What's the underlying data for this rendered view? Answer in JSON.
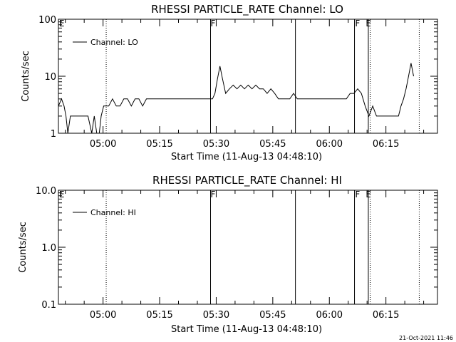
{
  "chart_data": [
    {
      "type": "line",
      "title": "RHESSI PARTICLE_RATE Channel: LO",
      "xlabel": "Start Time (11-Aug-13 04:48:10)",
      "ylabel": "Counts/sec",
      "yscale": "log",
      "ylim": [
        1,
        100
      ],
      "yticks": [
        1,
        10,
        100
      ],
      "ytick_labels": [
        "1",
        "10",
        "100"
      ],
      "xlim": [
        "04:48:10",
        "06:28:40"
      ],
      "xticks": [
        "05:00",
        "05:15",
        "05:30",
        "05:45",
        "06:00",
        "06:15"
      ],
      "legend": "upper-left",
      "series": [
        {
          "name": "Channel: LO",
          "x": [
            "04:48:10",
            "04:49:00",
            "04:49:40",
            "04:50:10",
            "04:50:40",
            "04:51:20",
            "04:52:00",
            "04:52:40",
            "04:53:20",
            "04:54:00",
            "04:55:00",
            "04:56:00",
            "04:57:00",
            "04:57:40",
            "04:58:20",
            "04:59:00",
            "04:59:30",
            "05:00:10",
            "05:00:50",
            "05:01:30",
            "05:02:30",
            "05:03:30",
            "05:04:30",
            "05:05:30",
            "05:06:30",
            "05:07:30",
            "05:08:30",
            "05:09:30",
            "05:10:30",
            "05:11:30",
            "05:12:30",
            "05:13:30",
            "05:14:30",
            "05:15:30",
            "05:16:30",
            "05:17:30",
            "05:18:30",
            "05:19:30",
            "05:20:30",
            "05:21:30",
            "05:22:30",
            "05:23:30",
            "05:24:30",
            "05:25:30",
            "05:26:30",
            "05:27:30",
            "05:28:20",
            "05:29:00",
            "05:29:40",
            "05:30:20",
            "05:31:00",
            "05:31:40",
            "05:32:30",
            "05:33:30",
            "05:34:30",
            "05:35:30",
            "05:36:30",
            "05:37:30",
            "05:38:30",
            "05:39:30",
            "05:40:30",
            "05:41:30",
            "05:42:30",
            "05:43:30",
            "05:44:30",
            "05:45:30",
            "05:46:30",
            "05:47:30",
            "05:48:30",
            "05:49:30",
            "05:50:30",
            "05:51:30",
            "05:52:30",
            "05:53:30",
            "05:54:30",
            "05:55:30",
            "05:56:30",
            "05:57:30",
            "05:58:30",
            "05:59:30",
            "06:00:30",
            "06:01:30",
            "06:02:30",
            "06:03:30",
            "06:04:30",
            "06:05:30",
            "06:06:30",
            "06:07:30",
            "06:08:30",
            "06:09:30",
            "06:10:30",
            "06:11:30",
            "06:12:30",
            "06:13:30",
            "06:14:30",
            "06:15:30",
            "06:16:30",
            "06:17:30",
            "06:18:20",
            "06:19:00",
            "06:19:40",
            "06:20:20",
            "06:21:00",
            "06:21:40",
            "06:22:20"
          ],
          "values": [
            3,
            4,
            3,
            2,
            1,
            2,
            2,
            2,
            2,
            2,
            2,
            2,
            1,
            2,
            1,
            1,
            2,
            3,
            3,
            3,
            4,
            3,
            3,
            4,
            4,
            3,
            4,
            4,
            3,
            4,
            4,
            4,
            4,
            4,
            4,
            4,
            4,
            4,
            4,
            4,
            4,
            4,
            4,
            4,
            4,
            4,
            4,
            4,
            5,
            9,
            15,
            9,
            5,
            6,
            7,
            6,
            7,
            6,
            7,
            6,
            7,
            6,
            6,
            5,
            6,
            5,
            4,
            4,
            4,
            4,
            5,
            4,
            4,
            4,
            4,
            4,
            4,
            4,
            4,
            4,
            4,
            4,
            4,
            4,
            4,
            5,
            5,
            6,
            5,
            3,
            2,
            3,
            2,
            2,
            2,
            2,
            2,
            2,
            2,
            3,
            4,
            6,
            10,
            17,
            10
          ]
        }
      ],
      "annotations": [
        {
          "label": "E",
          "x": "04:48:20"
        },
        {
          "label": "F",
          "x": "05:28:30"
        },
        {
          "label": "F",
          "x": "06:06:50"
        },
        {
          "label": "E",
          "x": "06:09:40"
        }
      ],
      "vlines_solid": [
        "05:28:30",
        "05:51:00",
        "06:06:40",
        "06:10:20"
      ],
      "vlines_dotted": [
        "05:00:50",
        "06:10:50",
        "06:23:50"
      ]
    },
    {
      "type": "line",
      "title": "RHESSI PARTICLE_RATE Channel: HI",
      "xlabel": "Start Time (11-Aug-13 04:48:10)",
      "ylabel": "Counts/sec",
      "yscale": "log",
      "ylim": [
        0.1,
        10
      ],
      "yticks": [
        0.1,
        1,
        10
      ],
      "ytick_labels": [
        "0.1",
        "1.0",
        "10.0"
      ],
      "xlim": [
        "04:48:10",
        "06:28:40"
      ],
      "xticks": [
        "05:00",
        "05:15",
        "05:30",
        "05:45",
        "06:00",
        "06:15"
      ],
      "legend": "upper-left",
      "series": [
        {
          "name": "Channel: HI",
          "x": [],
          "values": []
        }
      ],
      "annotations": [
        {
          "label": "E",
          "x": "04:48:20"
        },
        {
          "label": "F",
          "x": "05:28:30"
        },
        {
          "label": "F",
          "x": "06:06:50"
        },
        {
          "label": "E",
          "x": "06:09:40"
        }
      ],
      "vlines_solid": [
        "05:28:30",
        "05:51:00",
        "06:06:40",
        "06:10:20"
      ],
      "vlines_dotted": [
        "05:00:50",
        "06:10:50",
        "06:23:50"
      ]
    }
  ],
  "footer": {
    "timestamp": "21-Oct-2021 11:46"
  }
}
